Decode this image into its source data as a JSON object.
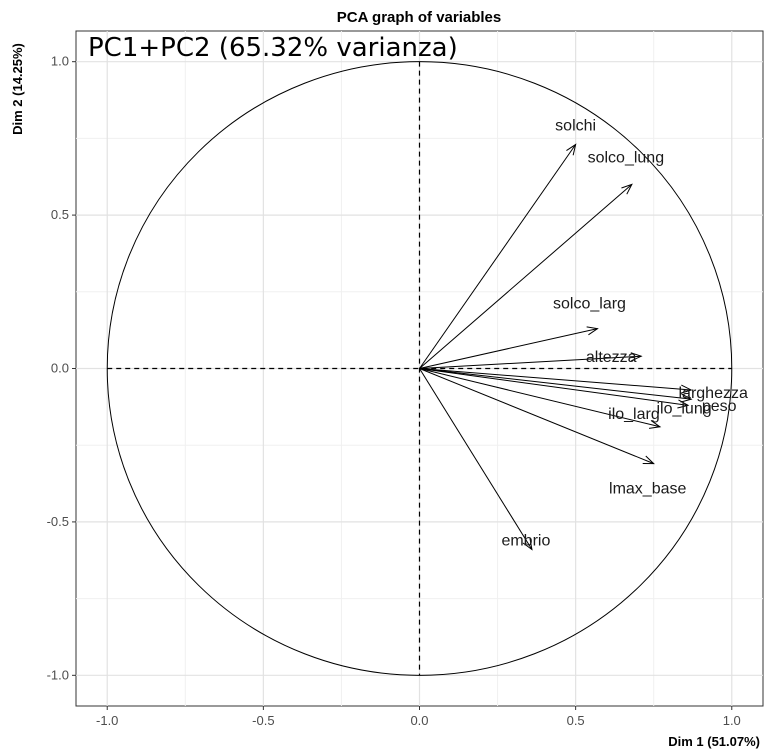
{
  "chart_data": {
    "type": "scatter",
    "title": "PCA graph of variables",
    "subtitle": "PC1+PC2 (65.32% varianza)",
    "xlabel": "Dim 1 (51.07%)",
    "ylabel": "Dim 2 (14.25%)",
    "xlim": [
      -1.1,
      1.1
    ],
    "ylim": [
      -1.1,
      1.1
    ],
    "xticks": [
      -1.0,
      -0.5,
      0.0,
      0.5,
      1.0
    ],
    "yticks": [
      -1.0,
      -0.5,
      0.0,
      0.5,
      1.0
    ],
    "xtick_labels": [
      "-1.0",
      "-0.5",
      "0.0",
      "0.5",
      "1.0"
    ],
    "ytick_labels": [
      "-1.0",
      "-0.5",
      "0.0",
      "0.5",
      "1.0"
    ],
    "grid": true,
    "unit_circle": true,
    "vectors": [
      {
        "name": "solchi",
        "x": 0.5,
        "y": 0.73
      },
      {
        "name": "solco_lung",
        "x": 0.68,
        "y": 0.6
      },
      {
        "name": "solco_larg",
        "x": 0.57,
        "y": 0.13
      },
      {
        "name": "altezza",
        "x": 0.71,
        "y": 0.04
      },
      {
        "name": "larghezza",
        "x": 0.87,
        "y": -0.07
      },
      {
        "name": "peso",
        "x": 0.87,
        "y": -0.1
      },
      {
        "name": "ilo_lung",
        "x": 0.86,
        "y": -0.12
      },
      {
        "name": "ilo_larg",
        "x": 0.77,
        "y": -0.19
      },
      {
        "name": "lmax_base",
        "x": 0.75,
        "y": -0.31
      },
      {
        "name": "embrio",
        "x": 0.36,
        "y": -0.59
      }
    ]
  }
}
